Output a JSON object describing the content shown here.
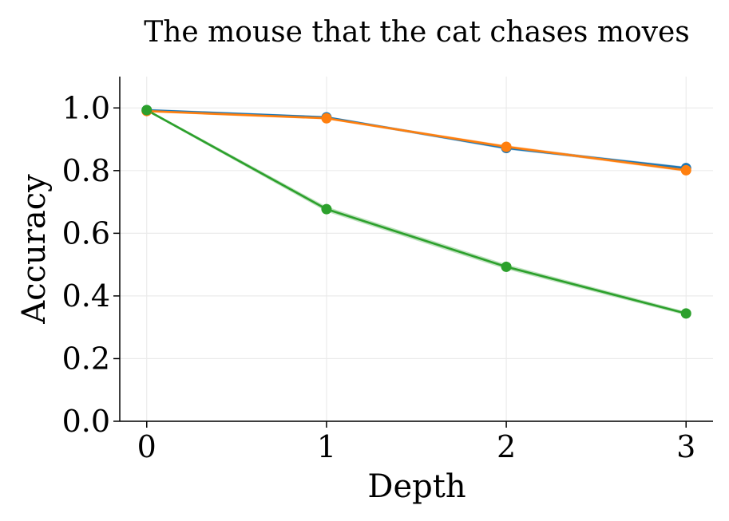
{
  "chart_data": {
    "type": "line",
    "title": "The mouse that the cat chases moves",
    "xlabel": "Depth",
    "ylabel": "Accuracy",
    "x": [
      0,
      1,
      2,
      3
    ],
    "xlim": [
      -0.15,
      3.15
    ],
    "ylim": [
      0.0,
      1.1
    ],
    "xticks": [
      0,
      1,
      2,
      3
    ],
    "xtick_labels": [
      "0",
      "1",
      "2",
      "3"
    ],
    "yticks": [
      0.0,
      0.2,
      0.4,
      0.6,
      0.8,
      1.0
    ],
    "ytick_labels": [
      "0.0",
      "0.2",
      "0.4",
      "0.6",
      "0.8",
      "1.0"
    ],
    "grid": true,
    "series": [
      {
        "color": "#1f77b4",
        "values": [
          0.993,
          0.97,
          0.872,
          0.808
        ],
        "band": [
          0.004,
          0.004,
          0.005,
          0.005
        ]
      },
      {
        "color": "#ff7f0e",
        "values": [
          0.99,
          0.967,
          0.876,
          0.801
        ],
        "band": [
          0.004,
          0.004,
          0.005,
          0.005
        ]
      },
      {
        "color": "#2ca02c",
        "values": [
          0.993,
          0.677,
          0.493,
          0.344
        ],
        "band": [
          0.004,
          0.008,
          0.008,
          0.006
        ]
      }
    ]
  }
}
